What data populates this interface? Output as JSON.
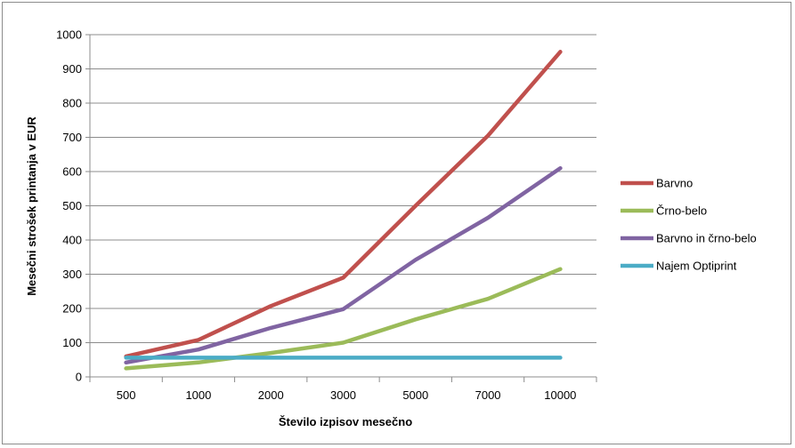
{
  "chart_data": {
    "type": "line",
    "title": "",
    "xlabel": "Število izpisov mesečno",
    "ylabel": "Mesečni strošek printanja v EUR",
    "categories": [
      "500",
      "1000",
      "2000",
      "3000",
      "5000",
      "7000",
      "10000"
    ],
    "ylim": [
      0,
      1000
    ],
    "yticks": [
      0,
      100,
      200,
      300,
      400,
      500,
      600,
      700,
      800,
      900,
      1000
    ],
    "grid": true,
    "legend_position": "right",
    "series": [
      {
        "name": "Barvno",
        "color": "#c0504d",
        "values": [
          60,
          108,
          207,
          290,
          500,
          705,
          950
        ]
      },
      {
        "name": "Črno-belo",
        "color": "#9bbb59",
        "values": [
          25,
          42,
          70,
          100,
          168,
          228,
          315
        ]
      },
      {
        "name": "Barvno in črno-belo",
        "color": "#8064a2",
        "values": [
          42,
          80,
          143,
          198,
          342,
          465,
          610
        ]
      },
      {
        "name": "Najem Optiprint",
        "color": "#4bacc6",
        "values": [
          56,
          56,
          56,
          56,
          56,
          56,
          56
        ]
      }
    ]
  }
}
